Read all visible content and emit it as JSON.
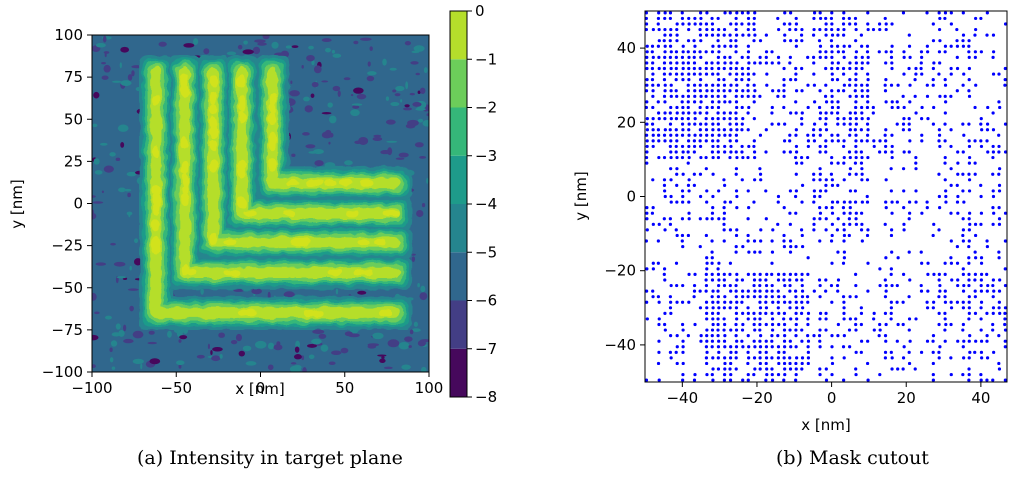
{
  "chart_data": [
    {
      "type": "heatmap",
      "subtype": "filled-contour",
      "caption": "(a) Intensity in target plane",
      "xlabel": "x [nm]",
      "ylabel": "y [nm]",
      "xlim": [
        -100,
        100
      ],
      "ylim": [
        -100,
        100
      ],
      "xticks": [
        -100,
        -50,
        0,
        50,
        100
      ],
      "yticks": [
        -100,
        -75,
        -50,
        -25,
        0,
        25,
        50,
        75,
        100
      ],
      "colorbar": {
        "levels": [
          -8,
          -7,
          -6,
          -5,
          -4,
          -3,
          -2,
          -1,
          0
        ],
        "ticks": [
          0,
          -1,
          -2,
          -3,
          -4,
          -5,
          -6,
          -7,
          -8
        ],
        "colors": [
          "#46085c",
          "#433e85",
          "#30678d",
          "#25858e",
          "#1e9b8a",
          "#35b779",
          "#6ccd5a",
          "#b5de2b",
          "#d2e21b"
        ],
        "tick_labels": [
          "0",
          "−1",
          "−2",
          "−3",
          "−4",
          "−5",
          "−6",
          "−7",
          "−8"
        ]
      },
      "background_level": -6,
      "pattern": "five nested L-shaped lines, vertical arms from y≈-70 to y≈80, horizontal arms to x≈80",
      "features": [
        {
          "shape": "L",
          "vertical_x": -62,
          "corner_y": -65,
          "top_y": 78,
          "right_x": 80
        },
        {
          "shape": "L",
          "vertical_x": -45,
          "corner_y": -41,
          "top_y": 78,
          "right_x": 80
        },
        {
          "shape": "L",
          "vertical_x": -28,
          "corner_y": -23,
          "top_y": 78,
          "right_x": 80
        },
        {
          "shape": "L",
          "vertical_x": -11,
          "corner_y": -6,
          "top_y": 78,
          "right_x": 80
        },
        {
          "shape": "L",
          "vertical_x": 7,
          "corner_y": 12,
          "top_y": 78,
          "right_x": 80
        }
      ]
    },
    {
      "type": "scatter",
      "caption": "(b) Mask cutout",
      "xlabel": "x [nm]",
      "ylabel": "y [nm]",
      "xlim": [
        -50,
        47
      ],
      "ylim": [
        -50,
        50
      ],
      "xticks": [
        -40,
        -20,
        0,
        20,
        40
      ],
      "yticks": [
        -40,
        -20,
        0,
        20,
        40
      ],
      "xtick_labels": [
        "−40",
        "−20",
        "0",
        "20",
        "40"
      ],
      "ytick_labels": [
        "−40",
        "−20",
        "0",
        "20",
        "40"
      ],
      "marker_color": "#0000ff",
      "pattern": "dense dots arranged in vertical columns, denser in upper-left and lower-left regions"
    }
  ]
}
